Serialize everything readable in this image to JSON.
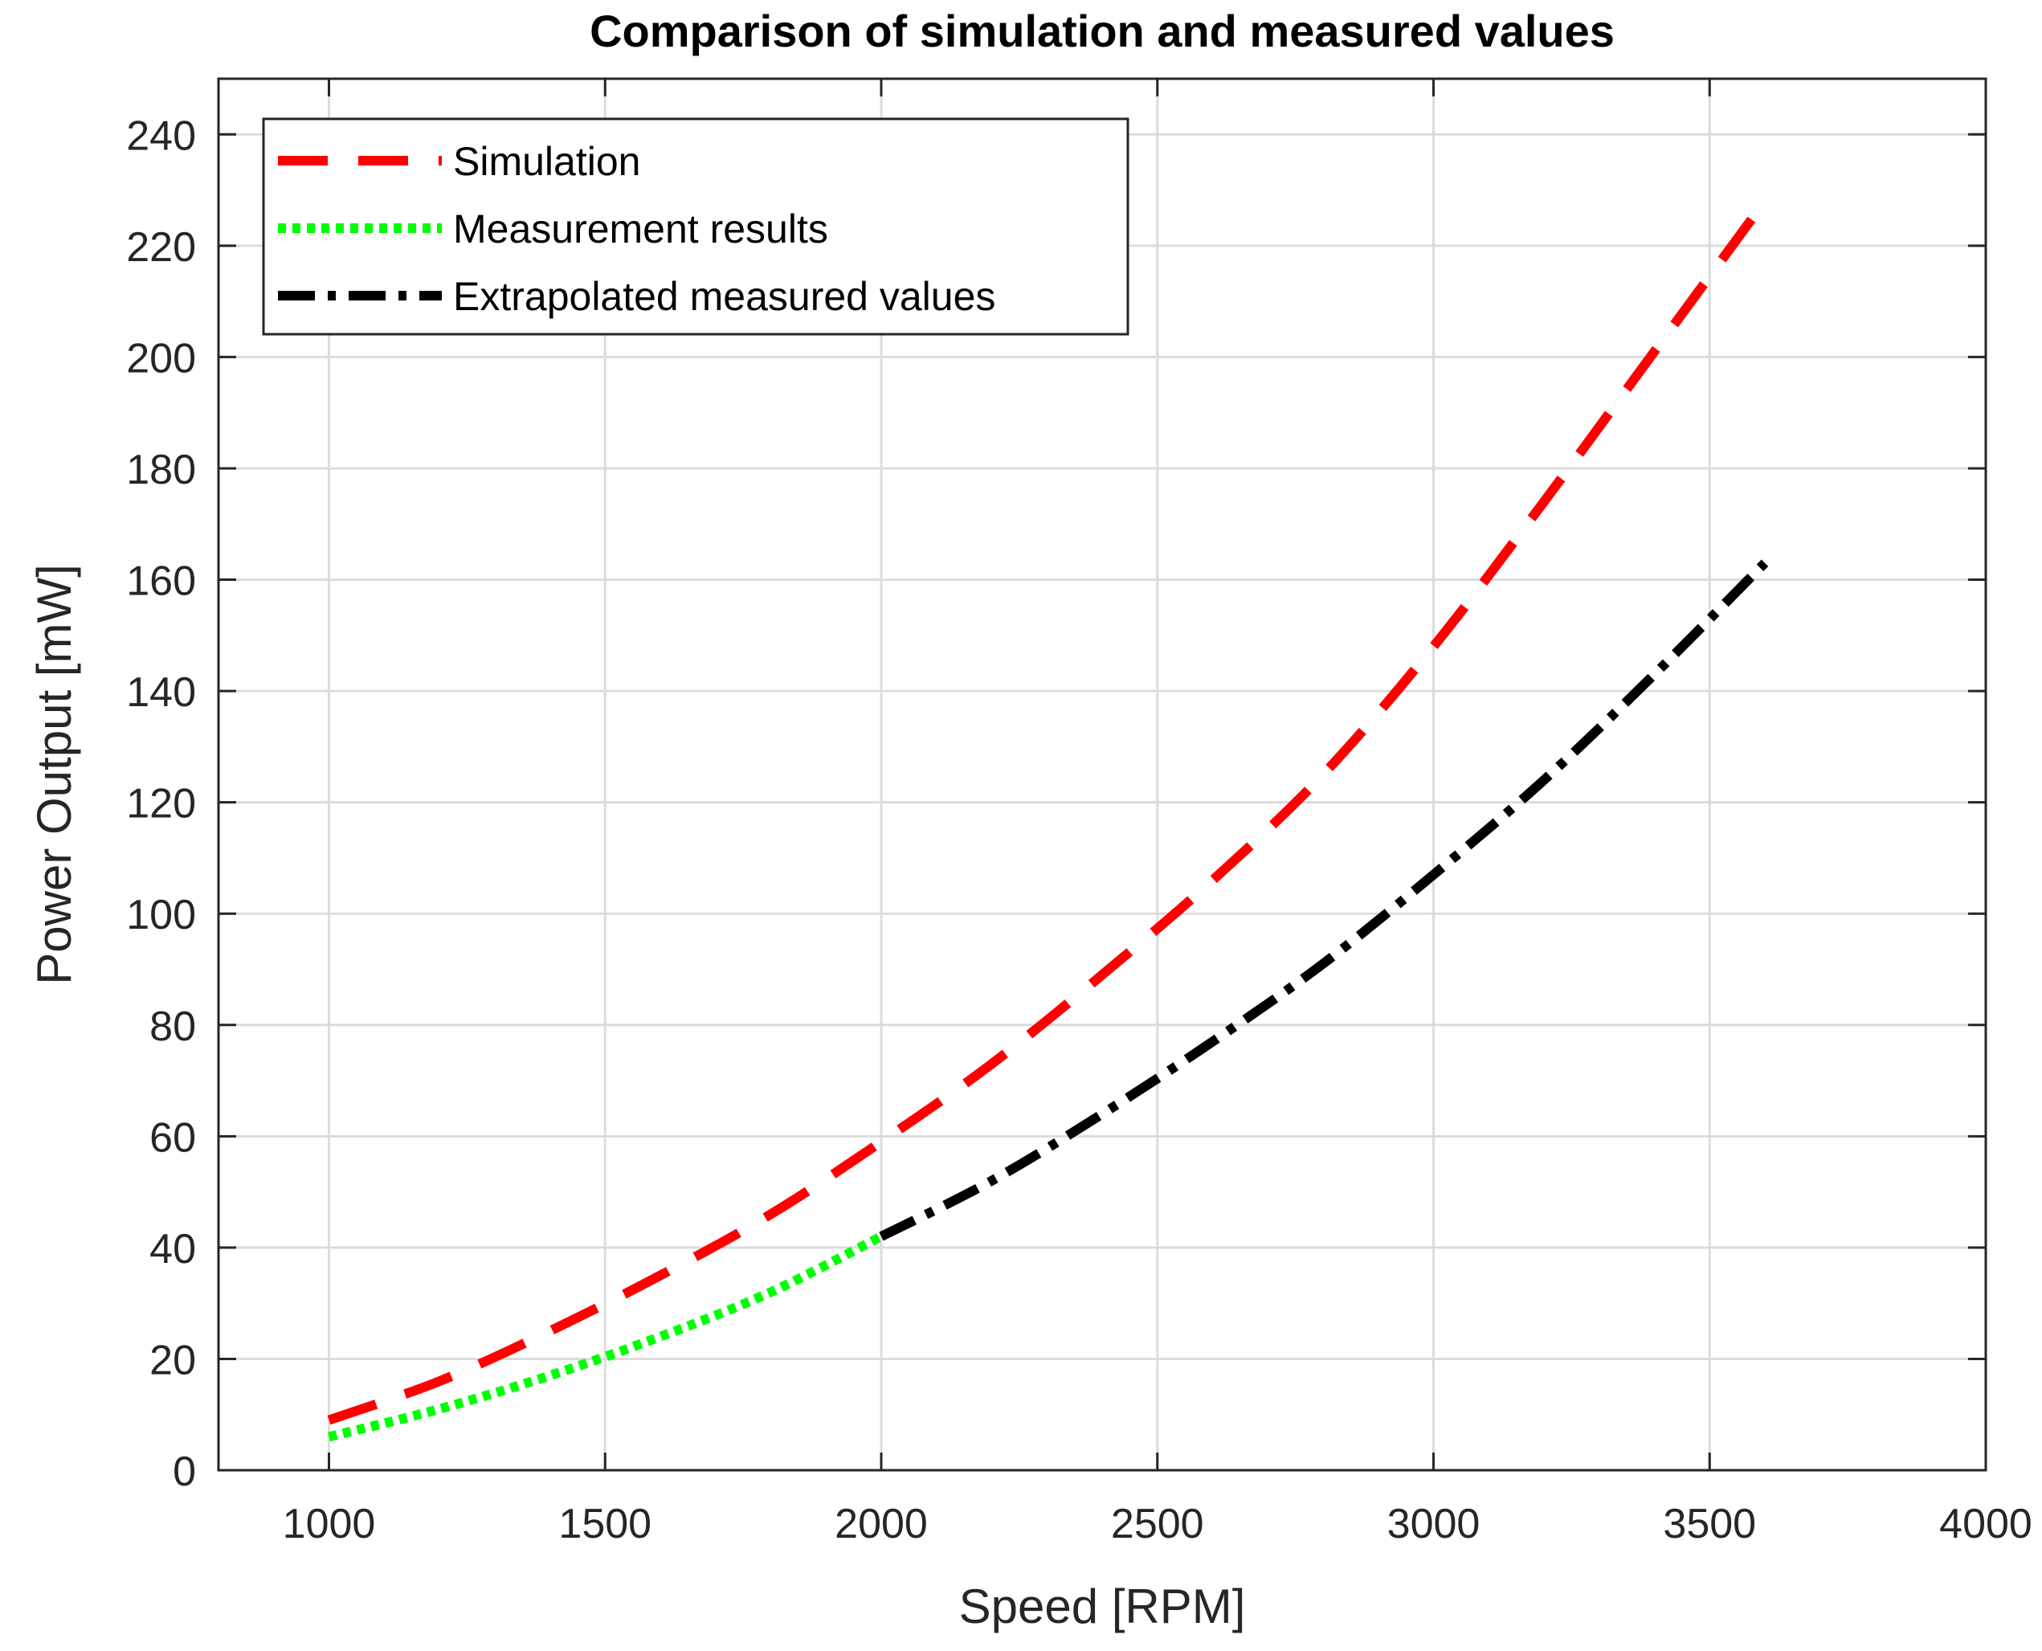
{
  "chart_data": {
    "type": "line",
    "title": "Comparison of simulation and measured values",
    "xlabel": "Speed [RPM]",
    "ylabel": "Power Output [mW]",
    "xlim": [
      800,
      4000
    ],
    "ylim": [
      0,
      250
    ],
    "xticks": [
      1000,
      1500,
      2000,
      2500,
      3000,
      3500,
      4000
    ],
    "yticks": [
      0,
      20,
      40,
      60,
      80,
      100,
      120,
      140,
      160,
      180,
      200,
      220,
      240
    ],
    "grid": true,
    "legend_position": "top-left",
    "series": [
      {
        "name": "Simulation",
        "color": "#ff0000",
        "style": "dashed",
        "x": [
          1000,
          1200,
          1400,
          1600,
          1800,
          2000,
          2200,
          2400,
          2600,
          2800,
          3000,
          3200,
          3400,
          3600
        ],
        "y": [
          9,
          16,
          25,
          35,
          46,
          59,
          73,
          89,
          106,
          125,
          148,
          174,
          201,
          228
        ]
      },
      {
        "name": "Measurement results",
        "color": "#00ff00",
        "style": "dotted",
        "x": [
          1000,
          1200,
          1400,
          1600,
          1800,
          2000
        ],
        "y": [
          6,
          11,
          17,
          24,
          32,
          42
        ]
      },
      {
        "name": "Extrapolated measured values",
        "color": "#000000",
        "style": "dashdot",
        "x": [
          2000,
          2200,
          2400,
          2600,
          2800,
          3000,
          3200,
          3400,
          3600
        ],
        "y": [
          42,
          52,
          64,
          77,
          91,
          107,
          124,
          143,
          163
        ]
      }
    ]
  }
}
